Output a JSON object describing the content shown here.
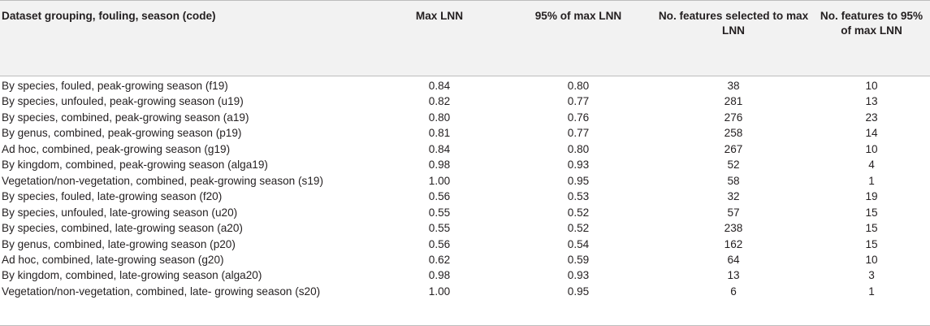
{
  "table": {
    "headers": [
      "Dataset grouping, fouling, season (code)",
      "Max LNN",
      "95% of max LNN",
      "No. features selected to max LNN",
      "No. features to 95% of max LNN"
    ],
    "rows": [
      [
        "By species, fouled, peak-growing season (f19)",
        "0.84",
        "0.80",
        "38",
        "10"
      ],
      [
        "By species, unfouled, peak-growing season (u19)",
        "0.82",
        "0.77",
        "281",
        "13"
      ],
      [
        "By species, combined, peak-growing season (a19)",
        "0.80",
        "0.76",
        "276",
        "23"
      ],
      [
        "By genus, combined, peak-growing season (p19)",
        "0.81",
        "0.77",
        "258",
        "14"
      ],
      [
        "Ad hoc, combined, peak-growing season (g19)",
        "0.84",
        "0.80",
        "267",
        "10"
      ],
      [
        "By kingdom, combined, peak-growing season (alga19)",
        "0.98",
        "0.93",
        "52",
        "4"
      ],
      [
        "Vegetation/non-vegetation, combined, peak-growing season (s19)",
        "1.00",
        "0.95",
        "58",
        "1"
      ],
      [
        "By species, fouled, late-growing season (f20)",
        "0.56",
        "0.53",
        "32",
        "19"
      ],
      [
        "By species, unfouled, late-growing season (u20)",
        "0.55",
        "0.52",
        "57",
        "15"
      ],
      [
        "By species, combined, late-growing season (a20)",
        "0.55",
        "0.52",
        "238",
        "15"
      ],
      [
        "By genus, combined, late-growing season (p20)",
        "0.56",
        "0.54",
        "162",
        "15"
      ],
      [
        "Ad hoc, combined, late-growing season (g20)",
        "0.62",
        "0.59",
        "64",
        "10"
      ],
      [
        "By kingdom, combined, late-growing season (alga20)",
        "0.98",
        "0.93",
        "13",
        "3"
      ],
      [
        "Vegetation/non-vegetation, combined, late- growing season (s20)",
        "1.00",
        "0.95",
        "6",
        "1"
      ]
    ]
  }
}
